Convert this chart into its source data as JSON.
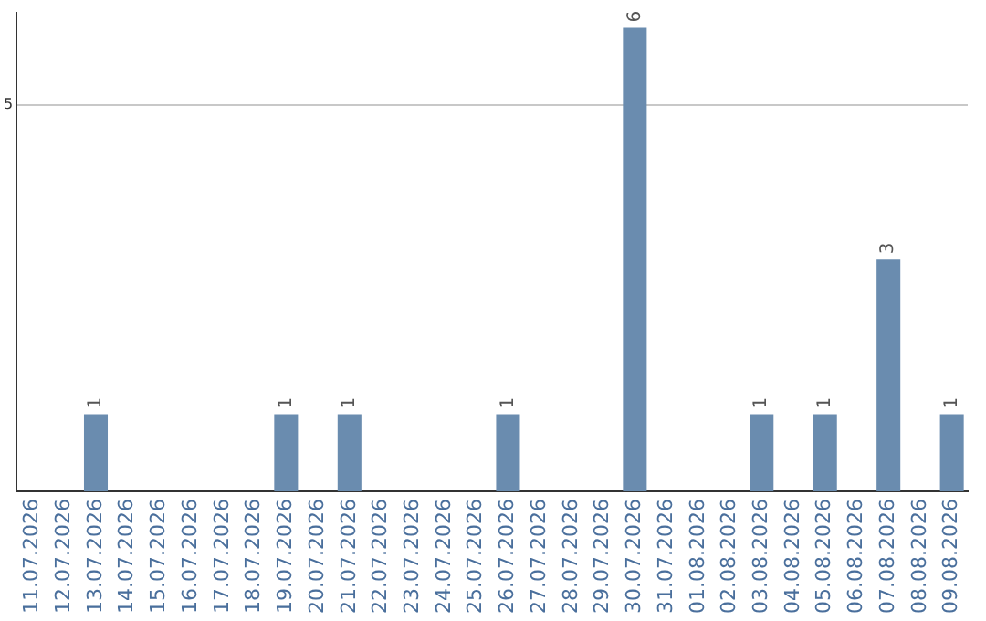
{
  "chart_data": {
    "type": "bar",
    "categories": [
      "11.07.2026",
      "12.07.2026",
      "13.07.2026",
      "14.07.2026",
      "15.07.2026",
      "16.07.2026",
      "17.07.2026",
      "18.07.2026",
      "19.07.2026",
      "20.07.2026",
      "21.07.2026",
      "22.07.2026",
      "23.07.2026",
      "24.07.2026",
      "25.07.2026",
      "26.07.2026",
      "27.07.2026",
      "28.07.2026",
      "29.07.2026",
      "30.07.2026",
      "31.07.2026",
      "01.08.2026",
      "02.08.2026",
      "03.08.2026",
      "04.08.2026",
      "05.08.2026",
      "06.08.2026",
      "07.08.2026",
      "08.08.2026",
      "09.08.2026"
    ],
    "values": [
      0,
      0,
      1,
      0,
      0,
      0,
      0,
      0,
      1,
      0,
      1,
      0,
      0,
      0,
      0,
      1,
      0,
      0,
      0,
      6,
      0,
      0,
      0,
      1,
      0,
      1,
      0,
      3,
      0,
      1
    ],
    "value_labels": [
      null,
      null,
      "1",
      null,
      null,
      null,
      null,
      null,
      "1",
      null,
      "1",
      null,
      null,
      null,
      null,
      "1",
      null,
      null,
      null,
      "6",
      null,
      null,
      null,
      "1",
      null,
      "1",
      null,
      "3",
      null,
      "1"
    ],
    "color": "#6a8caf",
    "ylim": [
      0,
      6.2
    ],
    "yticks": [
      5
    ],
    "grid": "y",
    "legend": false
  }
}
